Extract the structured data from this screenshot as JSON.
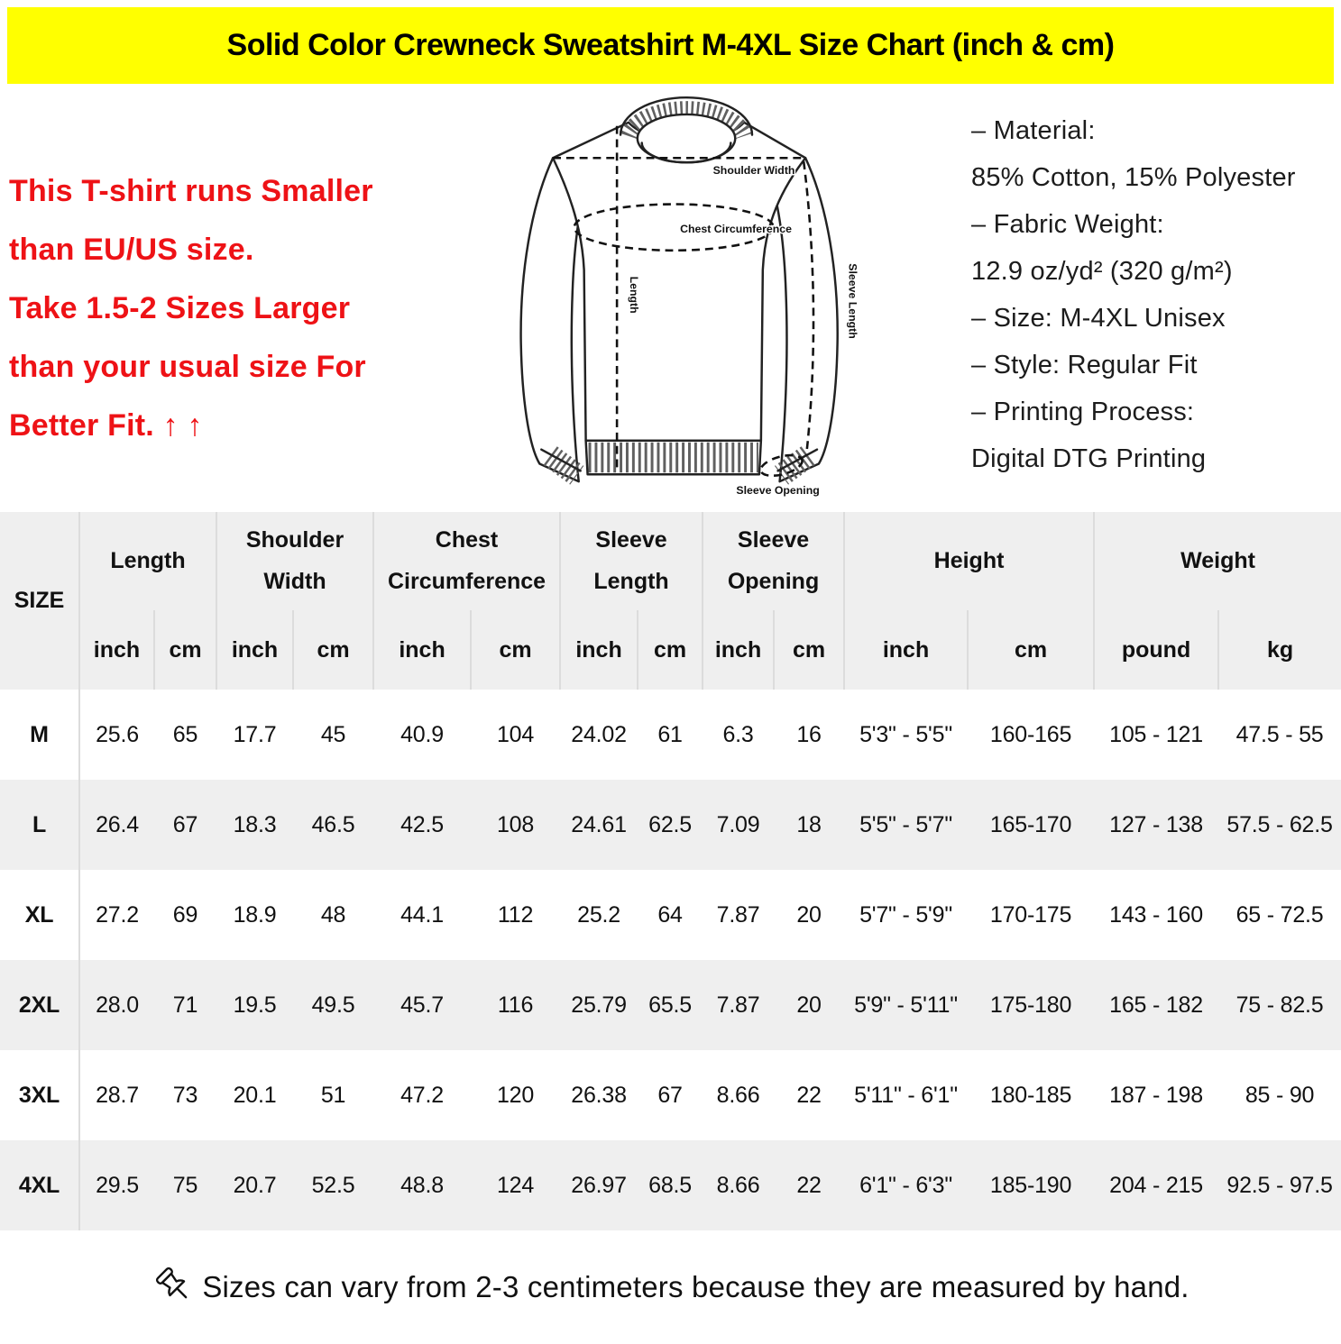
{
  "banner": {
    "title": "Solid Color Crewneck Sweatshirt M-4XL Size Chart (inch & cm)"
  },
  "notice": {
    "lines": [
      "This T-shirt runs Smaller",
      "than EU/US size.",
      "Take 1.5-2 Sizes Larger",
      "than your usual size For",
      "Better Fit. ↑ ↑"
    ],
    "text_color": "#ee1216"
  },
  "diagram": {
    "labels": {
      "shoulder_width": "Shoulder Width",
      "chest_circumference": "Chest Circumference",
      "length": "Length",
      "sleeve_length": "Sleeve Length",
      "sleeve_opening": "Sleeve Opening"
    }
  },
  "specs": {
    "lines": [
      "– Material:",
      "85% Cotton, 15% Polyester",
      "– Fabric Weight:",
      "12.9 oz/yd² (320 g/m²)",
      "– Size: M-4XL Unisex",
      "– Style: Regular Fit",
      "– Printing Process:",
      "Digital DTG Printing"
    ]
  },
  "table": {
    "size_header": "SIZE",
    "groups": [
      {
        "label": "Length"
      },
      {
        "label": "Shoulder Width"
      },
      {
        "label": "Chest Circumference"
      },
      {
        "label": "Sleeve Length"
      },
      {
        "label": "Sleeve Opening"
      },
      {
        "label": "Height"
      },
      {
        "label": "Weight"
      }
    ],
    "units": [
      "inch",
      "cm",
      "inch",
      "cm",
      "inch",
      "cm",
      "inch",
      "cm",
      "inch",
      "cm",
      "inch",
      "cm",
      "pound",
      "kg"
    ],
    "rows": [
      {
        "size": "M",
        "values": [
          "25.6",
          "65",
          "17.7",
          "45",
          "40.9",
          "104",
          "24.02",
          "61",
          "6.3",
          "16",
          "5'3\" - 5'5\"",
          "160-165",
          "105 - 121",
          "47.5 - 55"
        ]
      },
      {
        "size": "L",
        "values": [
          "26.4",
          "67",
          "18.3",
          "46.5",
          "42.5",
          "108",
          "24.61",
          "62.5",
          "7.09",
          "18",
          "5'5\" - 5'7\"",
          "165-170",
          "127 - 138",
          "57.5 - 62.5"
        ]
      },
      {
        "size": "XL",
        "values": [
          "27.2",
          "69",
          "18.9",
          "48",
          "44.1",
          "112",
          "25.2",
          "64",
          "7.87",
          "20",
          "5'7\" - 5'9\"",
          "170-175",
          "143 - 160",
          "65 - 72.5"
        ]
      },
      {
        "size": "2XL",
        "values": [
          "28.0",
          "71",
          "19.5",
          "49.5",
          "45.7",
          "116",
          "25.79",
          "65.5",
          "7.87",
          "20",
          "5'9\" - 5'11\"",
          "175-180",
          "165 - 182",
          "75 - 82.5"
        ]
      },
      {
        "size": "3XL",
        "values": [
          "28.7",
          "73",
          "20.1",
          "51",
          "47.2",
          "120",
          "26.38",
          "67",
          "8.66",
          "22",
          "5'11\" - 6'1\"",
          "180-185",
          "187 - 198",
          "85 - 90"
        ]
      },
      {
        "size": "4XL",
        "values": [
          "29.5",
          "75",
          "20.7",
          "52.5",
          "48.8",
          "124",
          "26.97",
          "68.5",
          "8.66",
          "22",
          "6'1\" - 6'3\"",
          "185-190",
          "204 - 215",
          "92.5 - 97.5"
        ]
      }
    ]
  },
  "footer": {
    "note": "Sizes can vary from 2-3 centimeters because they are measured by hand.",
    "icon": "pushpin-icon"
  },
  "colors": {
    "banner_bg": "#ffff00",
    "stripe": "#efefef",
    "divider": "#dcdcdc"
  }
}
